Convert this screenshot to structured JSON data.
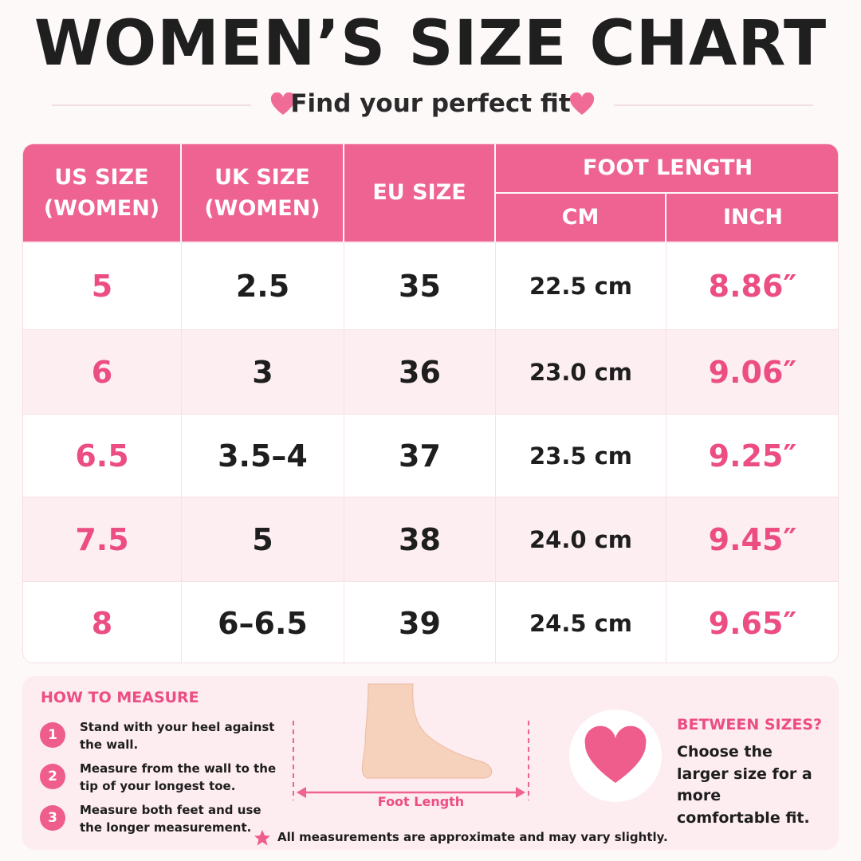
{
  "header": {
    "title": "WOMEN’S SIZE CHART",
    "subtitle": "Find your perfect fit"
  },
  "table": {
    "headers": [
      "US SIZE (WOMEN)",
      "UK SIZE (WOMEN)",
      "EU SIZE",
      "FOOT LENGTH",
      "CM",
      "INCH"
    ],
    "rows": [
      [
        "5",
        "2.5",
        "35",
        "22.5 cm",
        "8.86″"
      ],
      [
        "6",
        "3",
        "36",
        "23.0 cm",
        "9.06″"
      ],
      [
        "6.5",
        "3.5–4",
        "37",
        "23.5 cm",
        "9.25″"
      ],
      [
        "7.5",
        "5",
        "38",
        "24.0 cm",
        "9.45″"
      ],
      [
        "8",
        "6–6.5",
        "39",
        "24.5 cm",
        "9.65″"
      ]
    ]
  },
  "measure": {
    "title": "HOW TO MEASURE",
    "steps": [
      {
        "number": "1",
        "text": "Stand with your heel against the wall."
      },
      {
        "number": "2",
        "text": "Measure from the wall to the tip of your longest toe."
      },
      {
        "number": "3",
        "text": "Measure both feet and use the longer measurement."
      }
    ],
    "diagram_label": "Foot Length"
  },
  "between": {
    "title": "BETWEEN SIZES?",
    "text": "Choose the larger size for a more comfortable fit."
  },
  "note": "All measurements are approximate and may vary slightly."
}
